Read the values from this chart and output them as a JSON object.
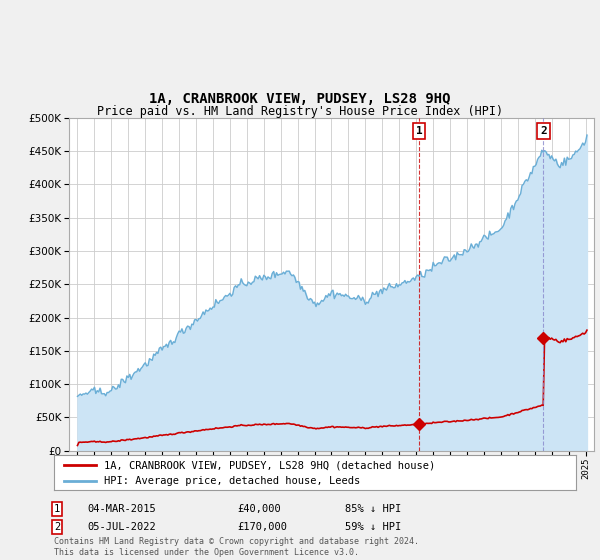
{
  "title": "1A, CRANBROOK VIEW, PUDSEY, LS28 9HQ",
  "subtitle": "Price paid vs. HM Land Registry's House Price Index (HPI)",
  "legend_label_red": "1A, CRANBROOK VIEW, PUDSEY, LS28 9HQ (detached house)",
  "legend_label_blue": "HPI: Average price, detached house, Leeds",
  "footnote": "Contains HM Land Registry data © Crown copyright and database right 2024.\nThis data is licensed under the Open Government Licence v3.0.",
  "sale1_date": 2015.17,
  "sale1_price": 40000,
  "sale1_label": "04-MAR-2015",
  "sale1_pct": "85% ↓ HPI",
  "sale2_date": 2022.51,
  "sale2_price": 170000,
  "sale2_label": "05-JUL-2022",
  "sale2_pct": "59% ↓ HPI",
  "ylim_min": 0,
  "ylim_max": 500000,
  "xlim_min": 1994.5,
  "xlim_max": 2025.5,
  "bg_color": "#f0f0f0",
  "plot_bg": "#ffffff",
  "blue_color": "#6aaed6",
  "blue_fill": "#cce4f5",
  "red_color": "#cc0000",
  "grid_color": "#cccccc"
}
